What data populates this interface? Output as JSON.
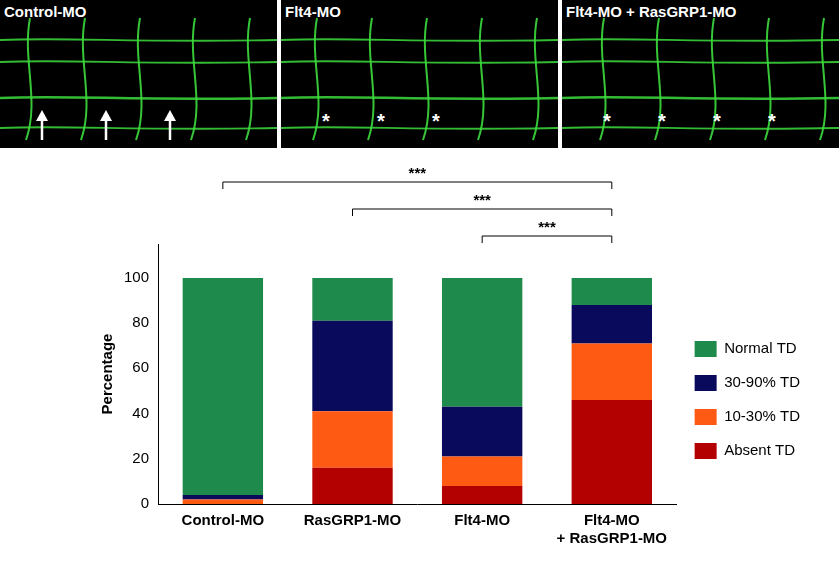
{
  "panels": [
    {
      "label": "Control-MO",
      "marker": "arrow",
      "count": 3
    },
    {
      "label": "Flt4-MO",
      "marker": "*",
      "count": 3
    },
    {
      "label": "Flt4-MO + RasGRP1-MO",
      "marker": "*",
      "count": 4
    }
  ],
  "chart_data": {
    "type": "bar",
    "stacked": true,
    "categories": [
      "Control-MO",
      "RasGRP1-MO",
      "Flt4-MO",
      "Flt4-MO\n+ RasGRP1-MO"
    ],
    "series": [
      {
        "name": "Absent TD",
        "color": "#b30000",
        "values": [
          0,
          16,
          8,
          46
        ]
      },
      {
        "name": "10-30% TD",
        "color": "#ff5a14",
        "values": [
          2,
          25,
          13,
          25
        ]
      },
      {
        "name": "30-90% TD",
        "color": "#0a0a5c",
        "values": [
          2,
          40,
          22,
          17
        ]
      },
      {
        "name": "Normal TD",
        "color": "#1e8a4c",
        "values": [
          96,
          19,
          57,
          12
        ]
      }
    ],
    "y_label": "Percentage",
    "ylim": [
      0,
      115
    ],
    "yticks": [
      0,
      20,
      40,
      60,
      80,
      100
    ],
    "grid": false,
    "legend": "right",
    "annotations": [
      {
        "from": "Control-MO",
        "to": "Flt4-MO\n+ RasGRP1-MO",
        "text": "***"
      },
      {
        "from": "RasGRP1-MO",
        "to": "Flt4-MO\n+ RasGRP1-MO",
        "text": "***"
      },
      {
        "from": "Flt4-MO",
        "to": "Flt4-MO\n+ RasGRP1-MO",
        "text": "***"
      }
    ]
  }
}
